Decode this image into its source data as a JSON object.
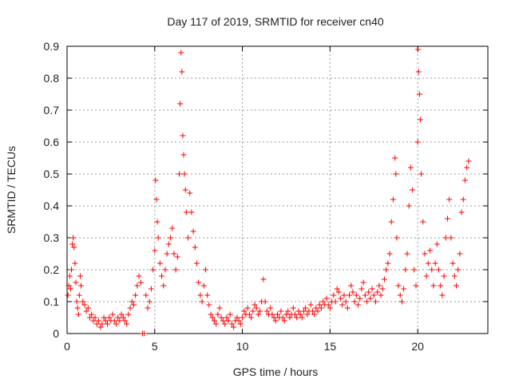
{
  "chart_data": {
    "type": "scatter",
    "title": "Day 117 of 2019, SRMTID for receiver cn40",
    "xlabel": "GPS time / hours",
    "ylabel": "SRMTID / TECUs",
    "xlim": [
      0,
      24.0
    ],
    "ylim": [
      0,
      0.9
    ],
    "xticks": [
      0,
      5,
      10,
      15,
      20
    ],
    "yticks": [
      0,
      0.1,
      0.2,
      0.3,
      0.4,
      0.5,
      0.6,
      0.7,
      0.8,
      0.9
    ],
    "grid": true,
    "marker": "plus",
    "series_color": "#ff0000",
    "series": [
      {
        "name": "SRMTID",
        "points": [
          [
            0.05,
            0.12
          ],
          [
            0.1,
            0.15
          ],
          [
            0.15,
            0.18
          ],
          [
            0.2,
            0.14
          ],
          [
            0.25,
            0.2
          ],
          [
            0.3,
            0.28
          ],
          [
            0.35,
            0.3
          ],
          [
            0.4,
            0.27
          ],
          [
            0.45,
            0.22
          ],
          [
            0.5,
            0.16
          ],
          [
            0.55,
            0.1
          ],
          [
            0.6,
            0.08
          ],
          [
            0.65,
            0.06
          ],
          [
            0.7,
            0.12
          ],
          [
            0.75,
            0.18
          ],
          [
            0.8,
            0.15
          ],
          [
            0.9,
            0.1
          ],
          [
            1.0,
            0.09
          ],
          [
            1.1,
            0.07
          ],
          [
            1.2,
            0.08
          ],
          [
            1.3,
            0.05
          ],
          [
            1.4,
            0.06
          ],
          [
            1.5,
            0.04
          ],
          [
            1.6,
            0.05
          ],
          [
            1.7,
            0.03
          ],
          [
            1.8,
            0.04
          ],
          [
            1.9,
            0.02
          ],
          [
            2.0,
            0.03
          ],
          [
            2.1,
            0.05
          ],
          [
            2.2,
            0.04
          ],
          [
            2.3,
            0.03
          ],
          [
            2.4,
            0.05
          ],
          [
            2.5,
            0.04
          ],
          [
            2.6,
            0.06
          ],
          [
            2.7,
            0.04
          ],
          [
            2.8,
            0.03
          ],
          [
            2.9,
            0.05
          ],
          [
            3.0,
            0.04
          ],
          [
            3.1,
            0.06
          ],
          [
            3.2,
            0.05
          ],
          [
            3.3,
            0.04
          ],
          [
            3.4,
            0.03
          ],
          [
            3.5,
            0.06
          ],
          [
            3.6,
            0.08
          ],
          [
            3.7,
            0.1
          ],
          [
            3.8,
            0.09
          ],
          [
            3.9,
            0.12
          ],
          [
            4.0,
            0.15
          ],
          [
            4.1,
            0.18
          ],
          [
            4.2,
            0.16
          ],
          [
            4.3,
            0.0
          ],
          [
            4.4,
            0.0
          ],
          [
            4.5,
            0.12
          ],
          [
            4.6,
            0.08
          ],
          [
            4.7,
            0.1
          ],
          [
            4.8,
            0.14
          ],
          [
            4.9,
            0.2
          ],
          [
            5.0,
            0.26
          ],
          [
            5.05,
            0.48
          ],
          [
            5.1,
            0.42
          ],
          [
            5.15,
            0.35
          ],
          [
            5.2,
            0.3
          ],
          [
            5.3,
            0.22
          ],
          [
            5.4,
            0.18
          ],
          [
            5.5,
            0.15
          ],
          [
            5.6,
            0.2
          ],
          [
            5.7,
            0.25
          ],
          [
            5.8,
            0.28
          ],
          [
            5.9,
            0.3
          ],
          [
            6.0,
            0.33
          ],
          [
            6.1,
            0.25
          ],
          [
            6.2,
            0.2
          ],
          [
            6.3,
            0.24
          ],
          [
            6.4,
            0.5
          ],
          [
            6.45,
            0.72
          ],
          [
            6.5,
            0.88
          ],
          [
            6.55,
            0.82
          ],
          [
            6.6,
            0.62
          ],
          [
            6.65,
            0.56
          ],
          [
            6.7,
            0.5
          ],
          [
            6.75,
            0.45
          ],
          [
            6.8,
            0.38
          ],
          [
            6.9,
            0.3
          ],
          [
            7.0,
            0.44
          ],
          [
            7.1,
            0.38
          ],
          [
            7.2,
            0.32
          ],
          [
            7.3,
            0.27
          ],
          [
            7.4,
            0.22
          ],
          [
            7.5,
            0.16
          ],
          [
            7.6,
            0.12
          ],
          [
            7.7,
            0.1
          ],
          [
            7.8,
            0.15
          ],
          [
            7.9,
            0.2
          ],
          [
            8.0,
            0.12
          ],
          [
            8.1,
            0.09
          ],
          [
            8.2,
            0.06
          ],
          [
            8.3,
            0.05
          ],
          [
            8.4,
            0.04
          ],
          [
            8.5,
            0.03
          ],
          [
            8.6,
            0.06
          ],
          [
            8.7,
            0.08
          ],
          [
            8.8,
            0.05
          ],
          [
            8.9,
            0.04
          ],
          [
            9.0,
            0.03
          ],
          [
            9.1,
            0.05
          ],
          [
            9.2,
            0.04
          ],
          [
            9.3,
            0.06
          ],
          [
            9.4,
            0.03
          ],
          [
            9.5,
            0.02
          ],
          [
            9.6,
            0.04
          ],
          [
            9.7,
            0.05
          ],
          [
            9.8,
            0.04
          ],
          [
            9.9,
            0.03
          ],
          [
            10.0,
            0.05
          ],
          [
            10.1,
            0.07
          ],
          [
            10.2,
            0.06
          ],
          [
            10.3,
            0.08
          ],
          [
            10.4,
            0.06
          ],
          [
            10.5,
            0.05
          ],
          [
            10.6,
            0.07
          ],
          [
            10.7,
            0.09
          ],
          [
            10.8,
            0.08
          ],
          [
            10.9,
            0.06
          ],
          [
            11.0,
            0.07
          ],
          [
            11.1,
            0.1
          ],
          [
            11.2,
            0.17
          ],
          [
            11.3,
            0.1
          ],
          [
            11.4,
            0.07
          ],
          [
            11.5,
            0.06
          ],
          [
            11.6,
            0.08
          ],
          [
            11.7,
            0.06
          ],
          [
            11.8,
            0.05
          ],
          [
            11.9,
            0.04
          ],
          [
            12.0,
            0.06
          ],
          [
            12.1,
            0.05
          ],
          [
            12.2,
            0.07
          ],
          [
            12.3,
            0.05
          ],
          [
            12.4,
            0.04
          ],
          [
            12.5,
            0.06
          ],
          [
            12.6,
            0.07
          ],
          [
            12.7,
            0.05
          ],
          [
            12.8,
            0.06
          ],
          [
            12.9,
            0.08
          ],
          [
            13.0,
            0.06
          ],
          [
            13.1,
            0.05
          ],
          [
            13.2,
            0.07
          ],
          [
            13.3,
            0.06
          ],
          [
            13.4,
            0.05
          ],
          [
            13.5,
            0.07
          ],
          [
            13.6,
            0.08
          ],
          [
            13.7,
            0.06
          ],
          [
            13.8,
            0.07
          ],
          [
            13.9,
            0.09
          ],
          [
            14.0,
            0.07
          ],
          [
            14.1,
            0.06
          ],
          [
            14.2,
            0.08
          ],
          [
            14.3,
            0.07
          ],
          [
            14.4,
            0.09
          ],
          [
            14.5,
            0.08
          ],
          [
            14.6,
            0.1
          ],
          [
            14.7,
            0.09
          ],
          [
            14.8,
            0.11
          ],
          [
            14.9,
            0.09
          ],
          [
            15.0,
            0.08
          ],
          [
            15.1,
            0.1
          ],
          [
            15.2,
            0.12
          ],
          [
            15.3,
            0.1
          ],
          [
            15.4,
            0.14
          ],
          [
            15.5,
            0.13
          ],
          [
            15.6,
            0.11
          ],
          [
            15.7,
            0.09
          ],
          [
            15.8,
            0.12
          ],
          [
            15.9,
            0.1
          ],
          [
            16.0,
            0.08
          ],
          [
            16.1,
            0.12
          ],
          [
            16.2,
            0.15
          ],
          [
            16.3,
            0.13
          ],
          [
            16.4,
            0.1
          ],
          [
            16.5,
            0.12
          ],
          [
            16.6,
            0.09
          ],
          [
            16.7,
            0.11
          ],
          [
            16.8,
            0.14
          ],
          [
            16.9,
            0.16
          ],
          [
            17.0,
            0.12
          ],
          [
            17.1,
            0.1
          ],
          [
            17.2,
            0.13
          ],
          [
            17.3,
            0.11
          ],
          [
            17.4,
            0.14
          ],
          [
            17.5,
            0.12
          ],
          [
            17.6,
            0.1
          ],
          [
            17.7,
            0.13
          ],
          [
            17.8,
            0.15
          ],
          [
            17.9,
            0.12
          ],
          [
            18.0,
            0.14
          ],
          [
            18.1,
            0.17
          ],
          [
            18.2,
            0.2
          ],
          [
            18.3,
            0.22
          ],
          [
            18.4,
            0.25
          ],
          [
            18.5,
            0.35
          ],
          [
            18.6,
            0.42
          ],
          [
            18.7,
            0.55
          ],
          [
            18.75,
            0.5
          ],
          [
            18.8,
            0.3
          ],
          [
            18.9,
            0.15
          ],
          [
            19.0,
            0.12
          ],
          [
            19.1,
            0.1
          ],
          [
            19.2,
            0.14
          ],
          [
            19.3,
            0.2
          ],
          [
            19.4,
            0.25
          ],
          [
            19.5,
            0.4
          ],
          [
            19.6,
            0.52
          ],
          [
            19.7,
            0.45
          ],
          [
            19.8,
            0.2
          ],
          [
            19.9,
            0.15
          ],
          [
            20.0,
            0.6
          ],
          [
            20.02,
            0.89
          ],
          [
            20.05,
            0.82
          ],
          [
            20.1,
            0.75
          ],
          [
            20.15,
            0.67
          ],
          [
            20.2,
            0.5
          ],
          [
            20.3,
            0.35
          ],
          [
            20.4,
            0.25
          ],
          [
            20.5,
            0.18
          ],
          [
            20.6,
            0.22
          ],
          [
            20.7,
            0.26
          ],
          [
            20.8,
            0.2
          ],
          [
            20.9,
            0.15
          ],
          [
            21.0,
            0.22
          ],
          [
            21.1,
            0.28
          ],
          [
            21.2,
            0.2
          ],
          [
            21.3,
            0.15
          ],
          [
            21.4,
            0.12
          ],
          [
            21.5,
            0.18
          ],
          [
            21.6,
            0.3
          ],
          [
            21.7,
            0.36
          ],
          [
            21.8,
            0.42
          ],
          [
            21.9,
            0.3
          ],
          [
            22.0,
            0.22
          ],
          [
            22.1,
            0.18
          ],
          [
            22.2,
            0.15
          ],
          [
            22.3,
            0.2
          ],
          [
            22.4,
            0.25
          ],
          [
            22.5,
            0.38
          ],
          [
            22.6,
            0.42
          ],
          [
            22.7,
            0.48
          ],
          [
            22.8,
            0.52
          ],
          [
            22.9,
            0.54
          ]
        ]
      }
    ]
  }
}
